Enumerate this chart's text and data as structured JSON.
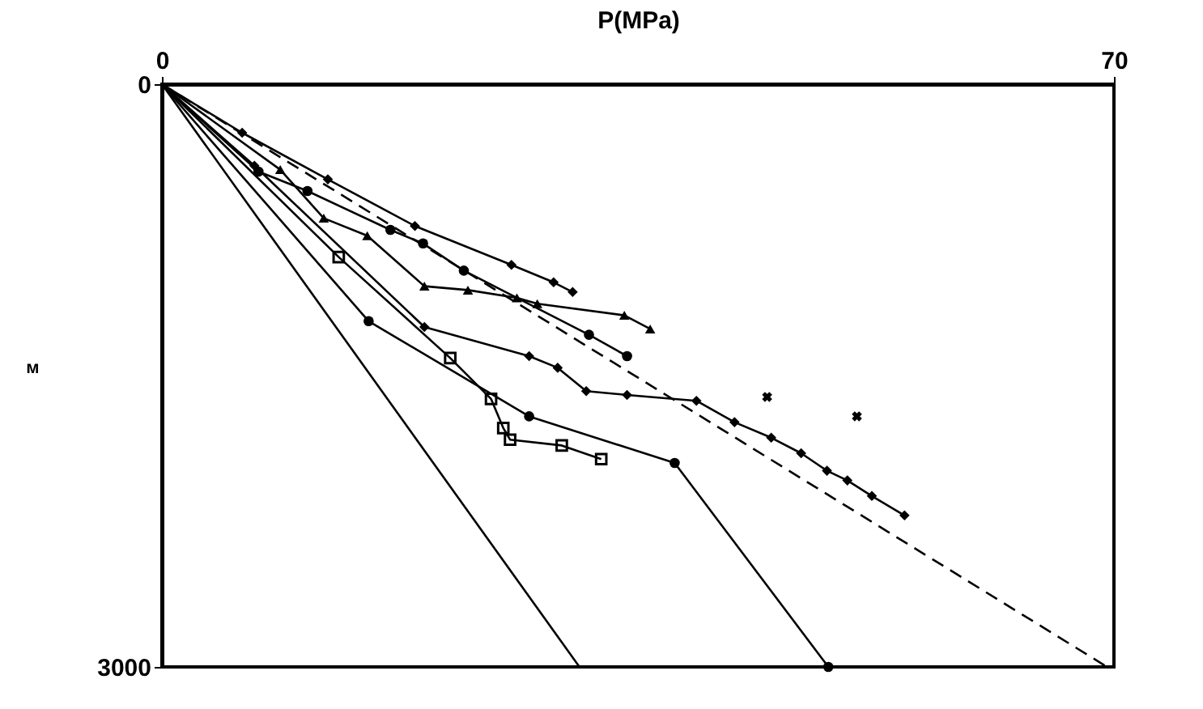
{
  "chart_data": {
    "type": "line",
    "xlabel": "P(MPa)",
    "ylabel": "м",
    "xlim": [
      0,
      70
    ],
    "ylim": [
      3000,
      0
    ],
    "xticks": [
      0,
      70
    ],
    "yticks": [
      0,
      3000
    ],
    "grid": false,
    "series": [
      {
        "type": "line",
        "color": "#000000",
        "marker": "none",
        "line_style": "dashed",
        "x": [
          0,
          69.5
        ],
        "values": [
          0,
          3000
        ]
      },
      {
        "type": "line",
        "color": "#000000",
        "marker": "none",
        "line_style": "solid",
        "x": [
          0,
          30.7
        ],
        "values": [
          0,
          3000
        ]
      },
      {
        "type": "line",
        "color": "#000000",
        "marker": "diamond",
        "line_style": "solid",
        "x": [
          0,
          5.9,
          12.2,
          18.6,
          25.7,
          28.8,
          30.2
        ],
        "values": [
          0,
          250,
          490,
          730,
          930,
          1020,
          1070
        ]
      },
      {
        "type": "line",
        "color": "#000000",
        "marker": "circle",
        "line_style": "solid",
        "x": [
          0,
          7.1,
          10.7,
          16.8,
          19.2,
          22.2,
          31.4,
          34.2
        ],
        "values": [
          0,
          450,
          550,
          750,
          820,
          960,
          1290,
          1400
        ]
      },
      {
        "type": "line",
        "color": "#000000",
        "marker": "triangle",
        "line_style": "solid",
        "x": [
          0,
          8.7,
          11.9,
          15.1,
          19.3,
          22.5,
          26.1,
          27.6,
          34.0,
          35.9
        ],
        "values": [
          0,
          440,
          690,
          780,
          1040,
          1060,
          1100,
          1130,
          1190,
          1260
        ]
      },
      {
        "type": "line",
        "color": "#000000",
        "marker": "diamond",
        "line_style": "solid",
        "x": [
          0,
          6.8,
          19.3,
          27.0,
          29.1,
          31.2,
          34.2,
          39.3,
          42.1,
          44.8,
          47.0,
          48.9,
          50.4,
          52.2,
          54.6
        ],
        "values": [
          0,
          420,
          1250,
          1400,
          1460,
          1580,
          1600,
          1630,
          1740,
          1820,
          1900,
          1990,
          2040,
          2120,
          2220
        ]
      },
      {
        "type": "line",
        "color": "#000000",
        "marker": "circle",
        "line_style": "solid",
        "x": [
          0,
          15.2,
          27.0,
          37.7,
          49.0
        ],
        "values": [
          0,
          1220,
          1710,
          1950,
          3000
        ]
      },
      {
        "type": "line",
        "color": "#000000",
        "marker": "square",
        "line_style": "solid",
        "x": [
          0,
          13.0,
          21.2,
          24.2,
          25.1,
          25.6,
          29.4,
          32.3
        ],
        "values": [
          0,
          890,
          1410,
          1620,
          1770,
          1830,
          1860,
          1930
        ]
      },
      {
        "type": "scatter",
        "color": "#000000",
        "marker": "cross",
        "x": [
          44.5,
          51.1
        ],
        "values": [
          1610,
          1710
        ]
      }
    ]
  }
}
